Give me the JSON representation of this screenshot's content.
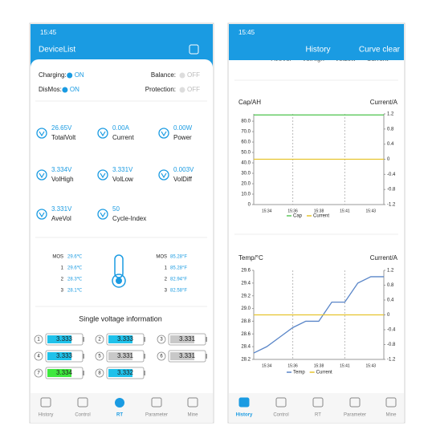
{
  "left": {
    "status_time": "15:45",
    "title": "DeviceList",
    "switches": [
      {
        "label": "Charging:",
        "state": "ON"
      },
      {
        "label": "Balance:",
        "state": "OFF"
      },
      {
        "label": "DisMos:",
        "state": "ON"
      },
      {
        "label": "Protection:",
        "state": "OFF"
      }
    ],
    "metrics": [
      {
        "value": "26.65V",
        "label": "TotalVolt"
      },
      {
        "value": "0.00A",
        "label": "Current"
      },
      {
        "value": "0.00W",
        "label": "Power"
      },
      {
        "value": "3.334V",
        "label": "VolHigh"
      },
      {
        "value": "3.331V",
        "label": "VolLow"
      },
      {
        "value": "0.003V",
        "label": "VolDiff"
      },
      {
        "value": "3.331V",
        "label": "AveVol"
      },
      {
        "value": "50",
        "label": "Cycle-Index"
      }
    ],
    "temps_c": [
      {
        "label": "MOS",
        "value": "29.6℃"
      },
      {
        "label": "1",
        "value": "29.6℃"
      },
      {
        "label": "2",
        "value": "28.3℃"
      },
      {
        "label": "3",
        "value": "28.1℃"
      }
    ],
    "temps_f": [
      {
        "label": "MOS",
        "value": "85.28°F"
      },
      {
        "label": "1",
        "value": "85.28°F"
      },
      {
        "label": "2",
        "value": "82.94°F"
      },
      {
        "label": "3",
        "value": "82.58°F"
      }
    ],
    "cells_title": "Single voltage information",
    "cells": [
      {
        "index": "1",
        "voltage": 3.333,
        "color": "#1fc1ea"
      },
      {
        "index": "2",
        "voltage": 3.333,
        "color": "#1fc1ea"
      },
      {
        "index": "3",
        "voltage": 3.331,
        "color": "#c8c8c8"
      },
      {
        "index": "4",
        "voltage": 3.333,
        "color": "#1fc1ea"
      },
      {
        "index": "5",
        "voltage": 3.331,
        "color": "#c8c8c8"
      },
      {
        "index": "6",
        "voltage": 3.331,
        "color": "#c8c8c8"
      },
      {
        "index": "7",
        "voltage": 3.334,
        "color": "#3ee83e"
      },
      {
        "index": "8",
        "voltage": 3.332,
        "color": "#1fc1ea"
      }
    ],
    "nav": [
      "History",
      "Control",
      "RT",
      "Parameter",
      "Mine"
    ],
    "nav_active": 2
  },
  "right": {
    "status_time": "15:45",
    "title": "History",
    "action": "Curve clear",
    "overflow_labels": [
      "AveVol",
      "VolHigh",
      "VolLow",
      "Current"
    ],
    "nav": [
      "History",
      "Control",
      "RT",
      "Parameter",
      "Mine"
    ],
    "nav_active": 0
  },
  "chart_data": [
    {
      "type": "line",
      "y_label": "Cap/AH",
      "y2_label": "Current/A",
      "xlim": [
        0,
        10
      ],
      "xticks": [
        {
          "value": 1,
          "label": "15:34"
        },
        {
          "value": 3,
          "label": "15:36"
        },
        {
          "value": 5,
          "label": "15:38"
        },
        {
          "value": 7,
          "label": "15:41"
        },
        {
          "value": 9,
          "label": "15:43"
        }
      ],
      "ylim": [
        0,
        87
      ],
      "yticks": [
        0,
        {
          "value": 10,
          "label": "10.0"
        },
        {
          "value": 20,
          "label": "20.0"
        },
        {
          "value": 30,
          "label": "30.0"
        },
        {
          "value": 40,
          "label": "40.0"
        },
        {
          "value": 50,
          "label": "50.0"
        },
        {
          "value": 60,
          "label": "60.0"
        },
        {
          "value": 70,
          "label": "70.0"
        },
        {
          "value": 80,
          "label": "80.0"
        }
      ],
      "y2lim": [
        -1.2,
        1.2
      ],
      "y2ticks": [
        1.2,
        0.8,
        0.4,
        0,
        -0.4,
        -0.8,
        -1.2
      ],
      "series": [
        {
          "name": "Cap",
          "color": "#5cc85c",
          "values": [
            86,
            86,
            86,
            86,
            86,
            86,
            86,
            86,
            86,
            86,
            86
          ]
        },
        {
          "name": "Current",
          "color": "#e6c42e",
          "axis": "y2",
          "values": [
            0,
            0,
            0,
            0,
            0,
            0,
            0,
            0,
            0,
            0,
            0
          ]
        }
      ]
    },
    {
      "type": "line",
      "y_label": "Temp/°C",
      "y2_label": "Current/A",
      "xlim": [
        0,
        10
      ],
      "xticks": [
        {
          "value": 1,
          "label": "15:34"
        },
        {
          "value": 3,
          "label": "15:36"
        },
        {
          "value": 5,
          "label": "15:38"
        },
        {
          "value": 7,
          "label": "15:41"
        },
        {
          "value": 9,
          "label": "15:43"
        }
      ],
      "ylim": [
        28.2,
        29.6
      ],
      "yticks": [
        28.2,
        28.4,
        28.6,
        28.8,
        {
          "value": 29,
          "label": "29.0"
        },
        29.2,
        29.4,
        29.6
      ],
      "y2lim": [
        -1.2,
        1.2
      ],
      "y2ticks": [
        1.2,
        0.8,
        0.4,
        0,
        -0.4,
        -0.8,
        -1.2
      ],
      "series": [
        {
          "name": "Temp",
          "color": "#5a86c8",
          "values": [
            28.3,
            28.4,
            28.55,
            28.7,
            28.8,
            28.8,
            29.1,
            29.1,
            29.4,
            29.5,
            29.5
          ]
        },
        {
          "name": "Current",
          "color": "#e6c42e",
          "axis": "y2",
          "values": [
            0,
            0,
            0,
            0,
            0,
            0,
            0,
            0,
            0,
            0,
            0
          ]
        }
      ]
    }
  ]
}
